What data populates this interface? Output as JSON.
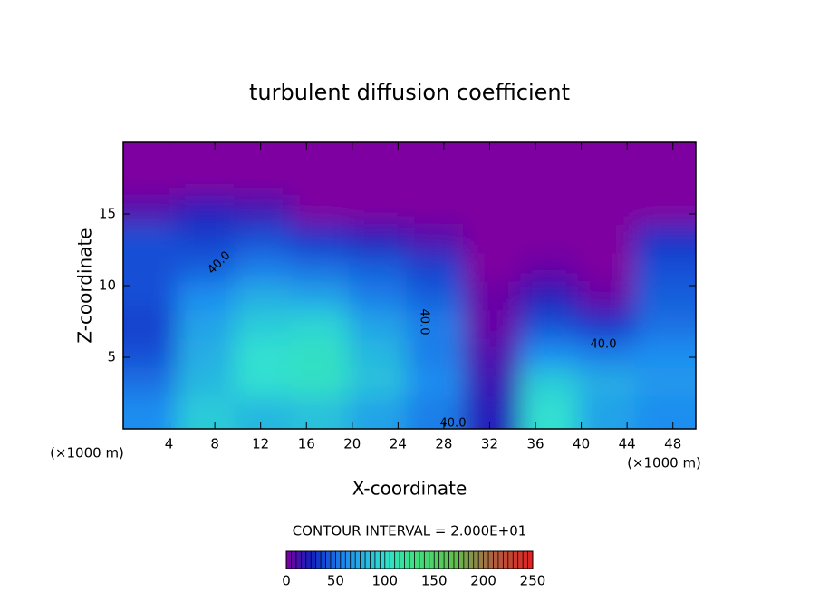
{
  "chart_data": {
    "type": "contour",
    "title": "turbulent diffusion coefficient",
    "x_label": "X-coordinate",
    "y_label": "Z-coordinate",
    "x_unit": "(×1000 m)",
    "subtitle": "CONTOUR INTERVAL = 2.000E+01",
    "xlim": [
      0,
      50
    ],
    "ylim": [
      0,
      20
    ],
    "xticks": [
      4,
      8,
      12,
      16,
      20,
      24,
      28,
      32,
      36,
      40,
      44,
      48
    ],
    "yticks": [
      5,
      10,
      15
    ],
    "x": [
      2.5,
      7.5,
      12.5,
      17.5,
      22.5,
      27.5,
      32.5,
      37.5,
      42.5,
      47.5
    ],
    "z": [
      19,
      17,
      15,
      13,
      11,
      9,
      7,
      5,
      3,
      1
    ],
    "values": [
      [
        0,
        0,
        0,
        0,
        0,
        0,
        0,
        0,
        0,
        0
      ],
      [
        0,
        0,
        0,
        0,
        0,
        0,
        0,
        0,
        0,
        0
      ],
      [
        10,
        20,
        15,
        0,
        0,
        0,
        0,
        0,
        0,
        0
      ],
      [
        40,
        35,
        40,
        30,
        20,
        10,
        0,
        0,
        0,
        30
      ],
      [
        40,
        45,
        55,
        50,
        45,
        35,
        0,
        5,
        0,
        40
      ],
      [
        40,
        60,
        75,
        70,
        55,
        45,
        5,
        20,
        5,
        45
      ],
      [
        35,
        70,
        90,
        95,
        70,
        55,
        5,
        40,
        30,
        50
      ],
      [
        40,
        75,
        100,
        105,
        80,
        55,
        10,
        60,
        55,
        60
      ],
      [
        50,
        80,
        100,
        105,
        85,
        60,
        15,
        90,
        75,
        65
      ],
      [
        60,
        90,
        80,
        85,
        70,
        55,
        20,
        100,
        70,
        60
      ]
    ],
    "contour_labels": [
      "40.0",
      "40.0",
      "40.0",
      "40.0"
    ],
    "clim": [
      0,
      250
    ],
    "cticks": [
      0,
      50,
      100,
      150,
      200,
      250
    ],
    "colormap": [
      {
        "value": 0,
        "color": "#7f00a0"
      },
      {
        "value": 25,
        "color": "#1020c0"
      },
      {
        "value": 60,
        "color": "#1e8ef0"
      },
      {
        "value": 100,
        "color": "#30e0d0"
      },
      {
        "value": 130,
        "color": "#40e080"
      },
      {
        "value": 170,
        "color": "#60c050"
      },
      {
        "value": 210,
        "color": "#b06040"
      },
      {
        "value": 250,
        "color": "#e02020"
      }
    ]
  }
}
